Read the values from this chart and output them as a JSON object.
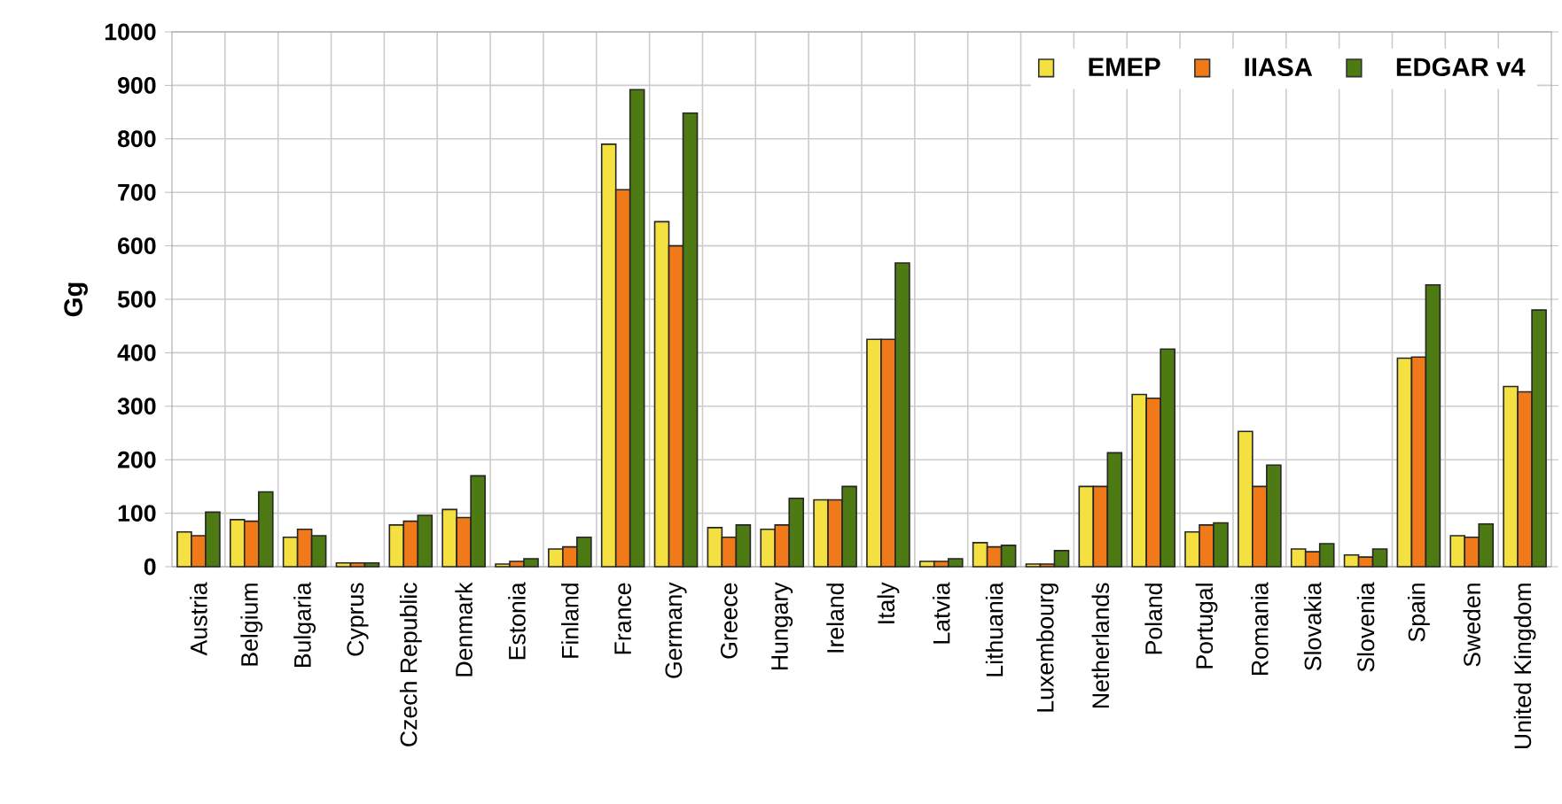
{
  "chart_data": {
    "type": "bar",
    "ylabel": "Gg",
    "categories": [
      "Austria",
      "Belgium",
      "Bulgaria",
      "Cyprus",
      "Czech Republic",
      "Denmark",
      "Estonia",
      "Finland",
      "France",
      "Germany",
      "Greece",
      "Hungary",
      "Ireland",
      "Italy",
      "Latvia",
      "Lithuania",
      "Luxembourg",
      "Netherlands",
      "Poland",
      "Portugal",
      "Romania",
      "Slovakia",
      "Slovenia",
      "Spain",
      "Sweden",
      "United Kingdom"
    ],
    "series": [
      {
        "name": "EMEP",
        "color": "#f5e042",
        "values": [
          65,
          88,
          55,
          7,
          78,
          107,
          5,
          33,
          790,
          645,
          73,
          70,
          125,
          425,
          10,
          45,
          5,
          150,
          322,
          65,
          253,
          33,
          22,
          390,
          58,
          337
        ]
      },
      {
        "name": "IIASA",
        "color": "#f07a1a",
        "values": [
          58,
          85,
          70,
          7,
          85,
          92,
          10,
          37,
          705,
          600,
          55,
          78,
          125,
          425,
          10,
          37,
          5,
          150,
          315,
          78,
          150,
          28,
          18,
          392,
          55,
          327
        ]
      },
      {
        "name": "EDGAR v4",
        "color": "#4d7a12",
        "values": [
          102,
          140,
          58,
          7,
          96,
          170,
          15,
          55,
          892,
          848,
          78,
          128,
          150,
          568,
          15,
          40,
          30,
          213,
          407,
          82,
          190,
          43,
          33,
          527,
          80,
          480
        ]
      }
    ],
    "ylim": [
      0,
      1000
    ],
    "yticks": [
      0,
      100,
      200,
      300,
      400,
      500,
      600,
      700,
      800,
      900,
      1000
    ],
    "grid": true,
    "legend": "top right"
  }
}
